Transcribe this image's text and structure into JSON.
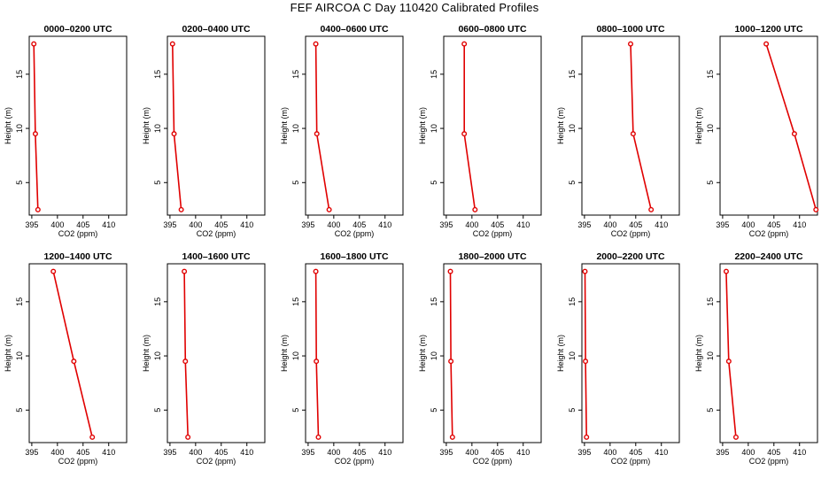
{
  "figure": {
    "title": "FEF AIRCOA C  Day 110420  Calibrated Profiles"
  },
  "chart_data": {
    "type": "line",
    "xlabel": "CO2 (ppm)",
    "ylabel": "Height (m)",
    "xlim": [
      394.5,
      413.5
    ],
    "ylim": [
      2.0,
      18.5
    ],
    "xticks": [
      395,
      400,
      405,
      410
    ],
    "yticks": [
      5,
      10,
      15
    ],
    "xtick_labels": [
      "395",
      "400",
      "405",
      "410"
    ],
    "ytick_labels": [
      "5",
      "10",
      "15"
    ],
    "series_color": "#e00000",
    "panels": [
      {
        "title": "0000–0200 UTC",
        "x": [
          395.4,
          395.7,
          396.2
        ],
        "y": [
          17.8,
          9.5,
          2.5
        ]
      },
      {
        "title": "0200–0400 UTC",
        "x": [
          395.5,
          395.8,
          397.2
        ],
        "y": [
          17.8,
          9.5,
          2.5
        ]
      },
      {
        "title": "0400–0600 UTC",
        "x": [
          396.5,
          396.7,
          399.1
        ],
        "y": [
          17.8,
          9.5,
          2.5
        ]
      },
      {
        "title": "0600–0800 UTC",
        "x": [
          398.5,
          398.5,
          400.6
        ],
        "y": [
          17.8,
          9.5,
          2.5
        ]
      },
      {
        "title": "0800–1000 UTC",
        "x": [
          404.0,
          404.5,
          408.0
        ],
        "y": [
          17.8,
          9.5,
          2.5
        ]
      },
      {
        "title": "1000–1200 UTC",
        "x": [
          403.5,
          409.0,
          413.2
        ],
        "y": [
          17.8,
          9.5,
          2.5
        ]
      },
      {
        "title": "1200–1400 UTC",
        "x": [
          399.2,
          403.2,
          406.8
        ],
        "y": [
          17.8,
          9.5,
          2.5
        ]
      },
      {
        "title": "1400–1600 UTC",
        "x": [
          397.8,
          398.0,
          398.5
        ],
        "y": [
          17.8,
          9.5,
          2.5
        ]
      },
      {
        "title": "1600–1800 UTC",
        "x": [
          396.5,
          396.6,
          397.0
        ],
        "y": [
          17.8,
          9.5,
          2.5
        ]
      },
      {
        "title": "1800–2000 UTC",
        "x": [
          395.8,
          395.9,
          396.2
        ],
        "y": [
          17.8,
          9.5,
          2.5
        ]
      },
      {
        "title": "2000–2200 UTC",
        "x": [
          395.1,
          395.2,
          395.4
        ],
        "y": [
          17.8,
          9.5,
          2.5
        ]
      },
      {
        "title": "2200–2400 UTC",
        "x": [
          395.7,
          396.2,
          397.6
        ],
        "y": [
          17.8,
          9.5,
          2.5
        ]
      }
    ]
  }
}
